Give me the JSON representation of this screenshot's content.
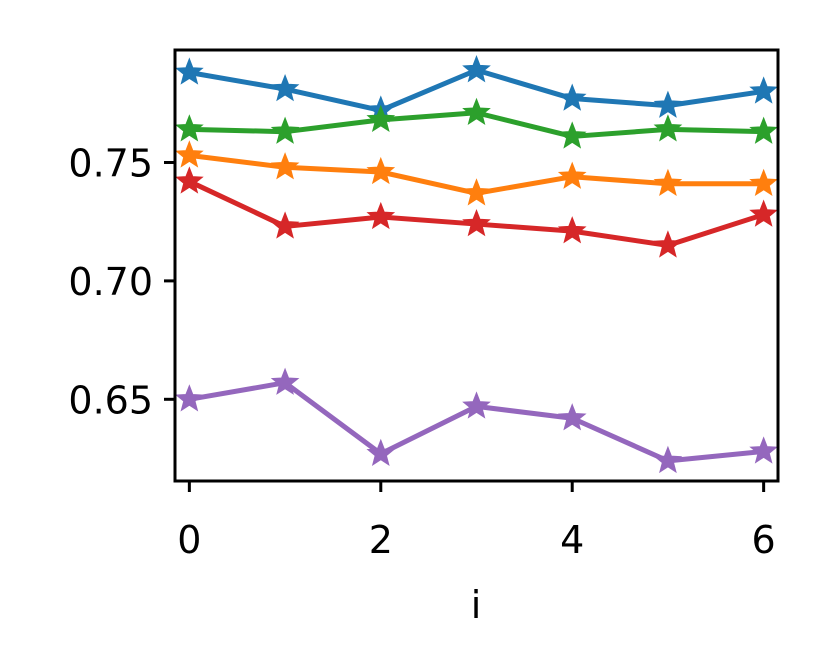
{
  "chart_data": {
    "type": "line",
    "title": "",
    "xlabel": "i",
    "ylabel": "",
    "x": [
      0,
      1,
      2,
      3,
      4,
      5,
      6
    ],
    "xticks": [
      "0",
      "2",
      "4",
      "6"
    ],
    "yticks": [
      "0.65",
      "0.70",
      "0.75"
    ],
    "xlim": [
      -0.15,
      6.15
    ],
    "ylim": [
      0.6155,
      0.7975
    ],
    "grid": false,
    "marker": "star",
    "series": [
      {
        "color": "#1f77b4",
        "values": [
          0.788,
          0.781,
          0.772,
          0.789,
          0.777,
          0.774,
          0.78
        ]
      },
      {
        "color": "#2ca02c",
        "values": [
          0.764,
          0.763,
          0.768,
          0.771,
          0.761,
          0.764,
          0.763
        ]
      },
      {
        "color": "#ff7f0e",
        "values": [
          0.753,
          0.748,
          0.746,
          0.737,
          0.744,
          0.741,
          0.741
        ]
      },
      {
        "color": "#d62728",
        "values": [
          0.742,
          0.723,
          0.727,
          0.724,
          0.721,
          0.715,
          0.728
        ]
      },
      {
        "color": "#9467bd",
        "values": [
          0.65,
          0.657,
          0.627,
          0.647,
          0.642,
          0.624,
          0.628
        ]
      }
    ]
  }
}
